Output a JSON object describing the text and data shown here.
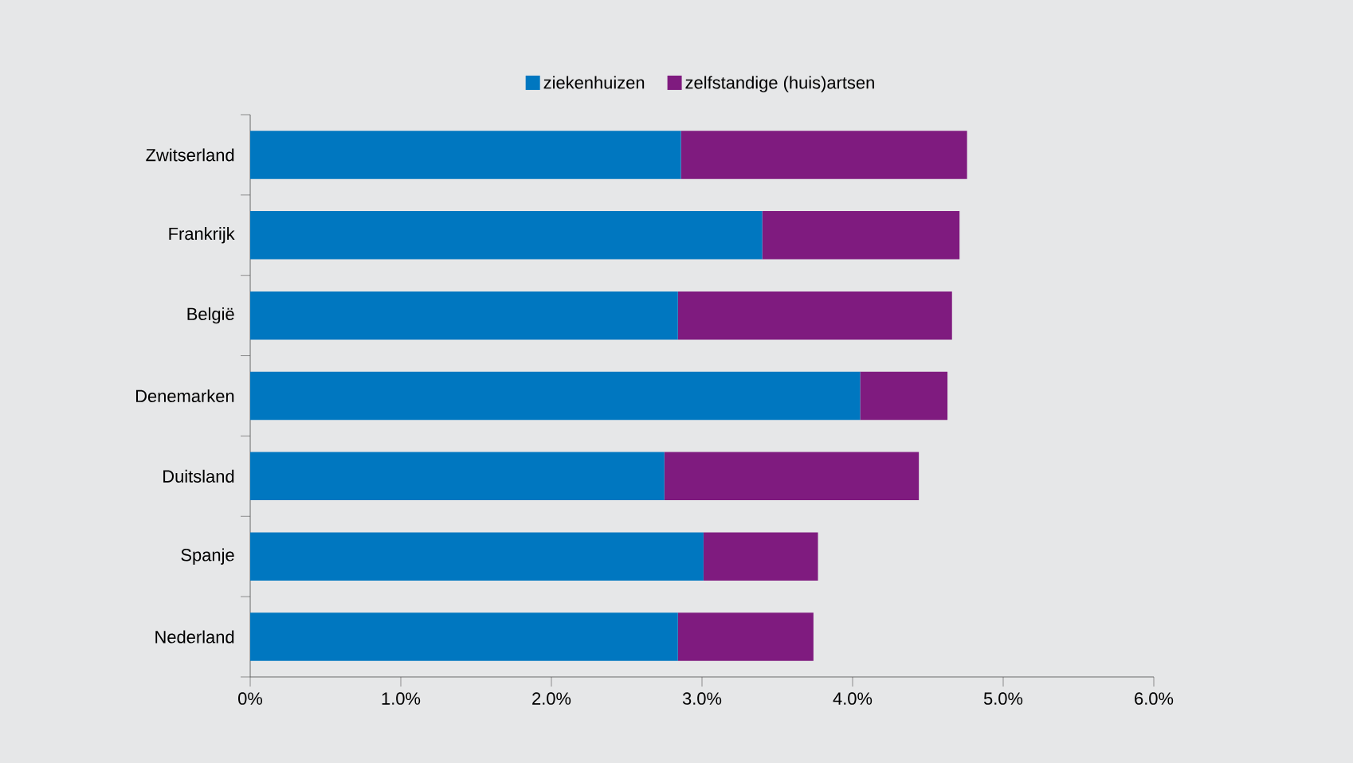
{
  "chart_data": {
    "type": "bar",
    "orientation": "horizontal",
    "stacked": true,
    "categories": [
      "Zwitserland",
      "Frankrijk",
      "België",
      "Denemarken",
      "Duitsland",
      "Spanje",
      "Nederland"
    ],
    "series": [
      {
        "name": "ziekenhuizen",
        "color": "#0077c0",
        "values": [
          2.86,
          3.4,
          2.84,
          4.05,
          2.75,
          3.01,
          2.84
        ]
      },
      {
        "name": "zelfstandige (huis)artsen",
        "color": "#7f1b7f",
        "values": [
          1.9,
          1.31,
          1.82,
          0.58,
          1.69,
          0.76,
          0.9
        ]
      }
    ],
    "xlim": [
      0,
      6
    ],
    "xticks": [
      {
        "value": 0,
        "label": "0%"
      },
      {
        "value": 1,
        "label": "1.0%"
      },
      {
        "value": 2,
        "label": "2.0%"
      },
      {
        "value": 3,
        "label": "3.0%"
      },
      {
        "value": 4,
        "label": "4.0%"
      },
      {
        "value": 5,
        "label": "5.0%"
      },
      {
        "value": 6,
        "label": "6.0%"
      }
    ],
    "grid": false,
    "legend": "top"
  }
}
